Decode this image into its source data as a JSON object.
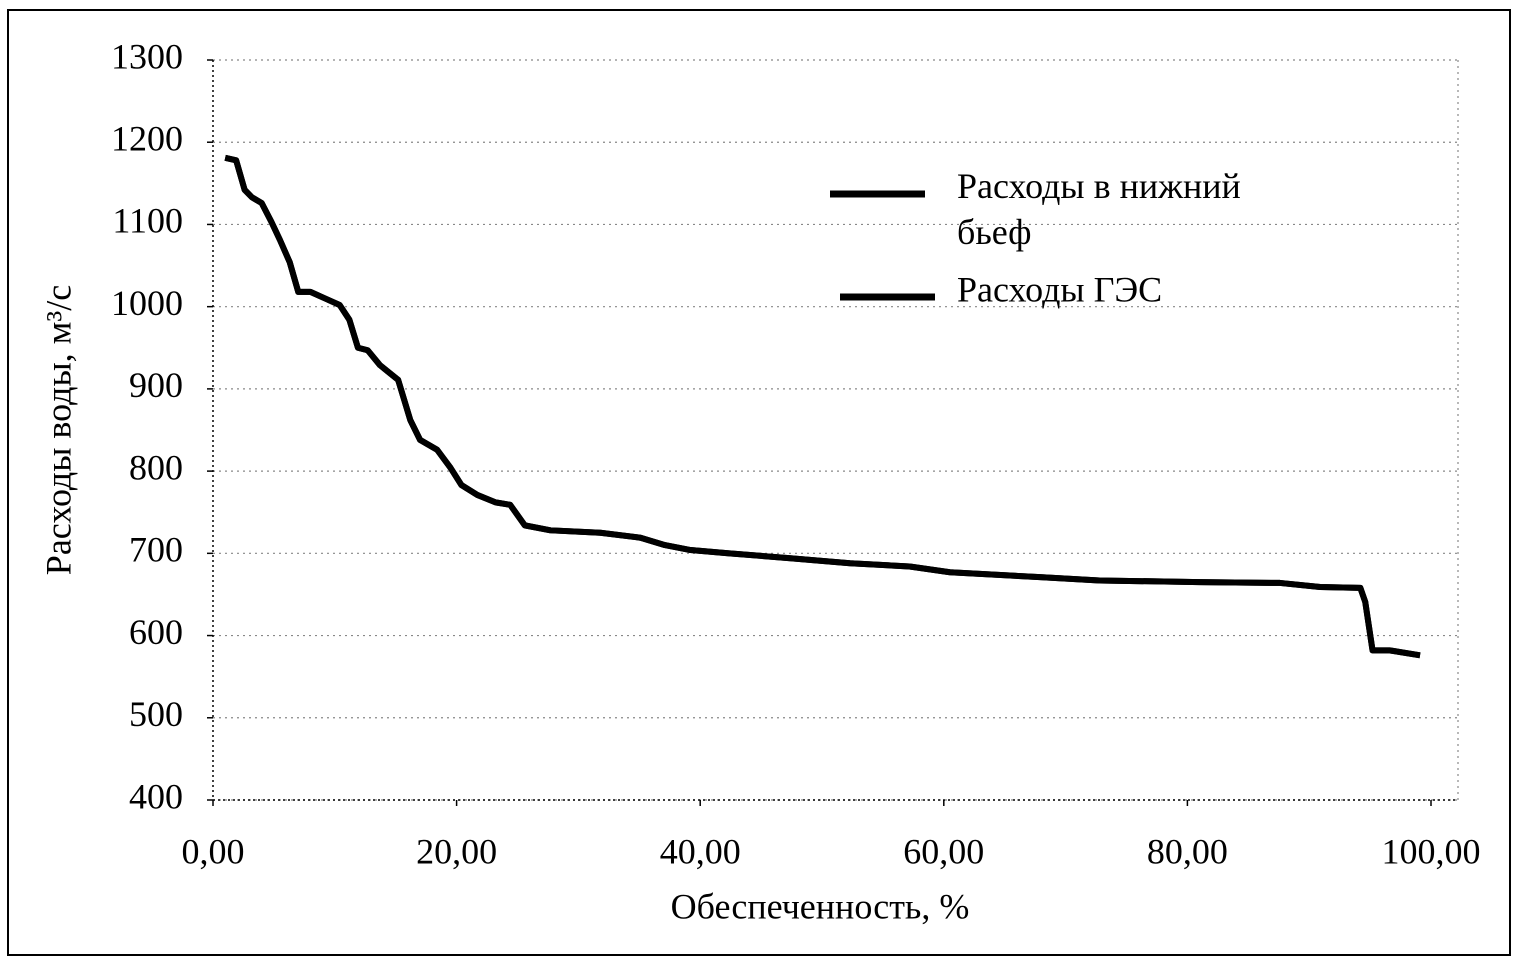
{
  "chart_data": {
    "type": "line",
    "x_label": "Обеспеченность, %",
    "y_label": "Расходы воды, м³/с",
    "xlim": [
      0,
      100
    ],
    "ylim": [
      400,
      1300
    ],
    "xticks": [
      {
        "value": 0,
        "label": "0,00"
      },
      {
        "value": 20,
        "label": "20,00"
      },
      {
        "value": 40,
        "label": "40,00"
      },
      {
        "value": 60,
        "label": "60,00"
      },
      {
        "value": 80,
        "label": "80,00"
      },
      {
        "value": 100,
        "label": "100,00"
      }
    ],
    "yticks": [
      400,
      500,
      600,
      700,
      800,
      900,
      1000,
      1100,
      1200,
      1300
    ],
    "grid": true,
    "legend": "top-right",
    "x": [
      1.0,
      1.9,
      2.6,
      3.2,
      4.0,
      4.8,
      5.5,
      6.3,
      7.0,
      8.0,
      9.2,
      10.4,
      11.2,
      11.9,
      12.7,
      13.7,
      15.2,
      16.2,
      17.0,
      18.4,
      19.5,
      20.4,
      21.7,
      23.2,
      24.4,
      25.6,
      27.7,
      31.8,
      35.1,
      37.1,
      39.2,
      42.4,
      47.4,
      52.3,
      57.2,
      60.5,
      67.9,
      72.8,
      81.0,
      87.6,
      90.9,
      94.2,
      94.6,
      95.2,
      96.6,
      99.1
    ],
    "series": [
      {
        "name": "Расходы в нижний бьеф",
        "color": "#000000",
        "values": [
          1181,
          1178,
          1142,
          1133,
          1126,
          1103,
          1081,
          1054,
          1018,
          1018,
          1010,
          1002,
          984,
          950,
          947,
          929,
          911,
          862,
          838,
          826,
          804,
          783,
          771,
          762,
          759,
          734,
          728,
          725,
          719,
          710,
          704,
          700,
          694,
          688,
          684,
          677,
          671,
          667,
          665,
          664,
          659,
          658,
          641,
          582,
          582,
          576
        ]
      },
      {
        "name": "Расходы ГЭС",
        "color": "#000000",
        "values": [
          1181,
          1178,
          1142,
          1133,
          1126,
          1103,
          1081,
          1054,
          1018,
          1018,
          1010,
          1002,
          984,
          950,
          947,
          929,
          911,
          862,
          838,
          826,
          804,
          783,
          771,
          762,
          759,
          734,
          728,
          725,
          719,
          710,
          704,
          700,
          694,
          688,
          684,
          677,
          671,
          667,
          665,
          664,
          659,
          658,
          641,
          582,
          582,
          576
        ]
      }
    ]
  }
}
